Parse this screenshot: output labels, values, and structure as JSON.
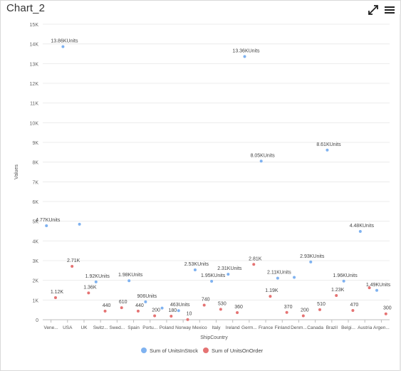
{
  "title": "Chart_2",
  "toolbar": {
    "expand_icon": "expand-arrows-icon",
    "menu_icon": "hamburger-menu-icon"
  },
  "chart_data": {
    "type": "scatter",
    "title": "",
    "xlabel": "ShipCountry",
    "ylabel": "Values",
    "ylim": [
      0,
      15000
    ],
    "yticks": [
      "0",
      "1K",
      "2K",
      "3K",
      "4K",
      "5K",
      "6K",
      "7K",
      "8K",
      "9K",
      "10K",
      "11K",
      "12K",
      "13K",
      "14K",
      "15K"
    ],
    "grid": true,
    "legend_position": "bottom",
    "categories": [
      "Vene...",
      "USA",
      "UK",
      "Switz...",
      "Swed...",
      "Spain",
      "Portu...",
      "Poland",
      "Norway",
      "Mexico",
      "Italy",
      "Ireland",
      "Germ...",
      "France",
      "Finland",
      "Denm...",
      "Canada",
      "Brazil",
      "Belgi...",
      "Austria",
      "Argen..."
    ],
    "series": [
      {
        "name": "Sum of UnitsInStock",
        "color": "#7fb2f0",
        "values": [
          4770,
          13860,
          4850,
          1920,
          null,
          1980,
          906,
          590,
          463,
          2530,
          1950,
          2310,
          13360,
          8050,
          2110,
          2150,
          2930,
          8610,
          1960,
          4480,
          1490
        ],
        "labels": [
          "4.77KUnits",
          "13.86KUnits",
          "",
          "1.92KUnits",
          "",
          "1.98KUnits",
          "906Units",
          "",
          "463Units",
          "2.53KUnits",
          "1.95KUnits",
          "2.31KUnits",
          "13.36KUnits",
          "8.05KUnits",
          "2.11KUnits",
          "",
          "2.93KUnits",
          "8.61KUnits",
          "1.96KUnits",
          "4.48KUnits",
          "1.49KUnits"
        ]
      },
      {
        "name": "Sum of UnitsOnOrder",
        "color": "#e57373",
        "values": [
          1120,
          2710,
          1360,
          440,
          610,
          440,
          200,
          180,
          10,
          740,
          530,
          360,
          2810,
          1190,
          370,
          200,
          510,
          1230,
          470,
          1620,
          300
        ],
        "labels": [
          "1.12K",
          "2.71K",
          "1.36K",
          "440",
          "610",
          "440",
          "200",
          "180",
          "10",
          "740",
          "530",
          "360",
          "2.81K",
          "1.19K",
          "370",
          "200",
          "510",
          "1.23K",
          "470",
          "",
          "300"
        ]
      }
    ]
  }
}
